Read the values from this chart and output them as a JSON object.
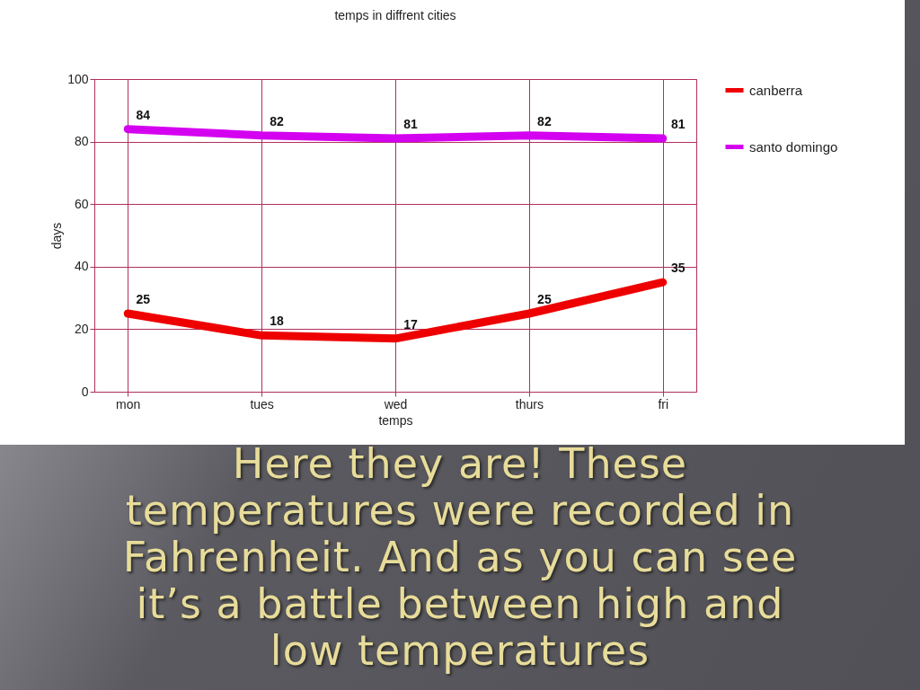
{
  "chart_data": {
    "type": "line",
    "title": "temps in diffrent cities",
    "xlabel": "temps",
    "ylabel": "days",
    "categories": [
      "mon",
      "tues",
      "wed",
      "thurs",
      "fri"
    ],
    "series": [
      {
        "name": "canberra",
        "color": "#ee0000",
        "values": [
          25,
          18,
          17,
          25,
          35
        ]
      },
      {
        "name": "santo domingo",
        "color": "#d400f0",
        "values": [
          84,
          82,
          81,
          82,
          81
        ]
      }
    ],
    "ylim": [
      0,
      100
    ],
    "yticks": [
      0,
      20,
      40,
      60,
      80,
      100
    ],
    "grid": true,
    "legend": "right",
    "data_labels": true,
    "annotations": [
      "Here they are! These temperatures were recorded in Fahrenheit. And as you can see it’s a battle between high and low temperatures"
    ]
  }
}
